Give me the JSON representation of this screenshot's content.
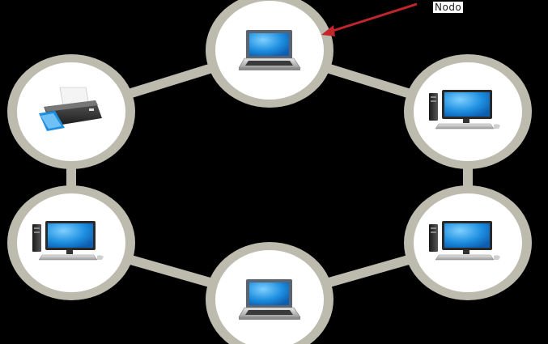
{
  "annotation": {
    "label": "Nodo",
    "arrow_color": "#c0262b"
  },
  "colors": {
    "background": "#000000",
    "link": "#bdbaae",
    "node_ring": "#bdbaae",
    "node_fill": "#ffffff",
    "screen": "#1e8fe0"
  },
  "nodes": [
    {
      "id": "laptop-top",
      "icon": "laptop-icon"
    },
    {
      "id": "desktop-right-top",
      "icon": "desktop-computer-icon"
    },
    {
      "id": "desktop-right-bottom",
      "icon": "desktop-computer-icon"
    },
    {
      "id": "laptop-bottom",
      "icon": "laptop-icon"
    },
    {
      "id": "desktop-left-bottom",
      "icon": "desktop-computer-icon"
    },
    {
      "id": "printer-left-top",
      "icon": "printer-icon"
    }
  ],
  "topology": "ring"
}
